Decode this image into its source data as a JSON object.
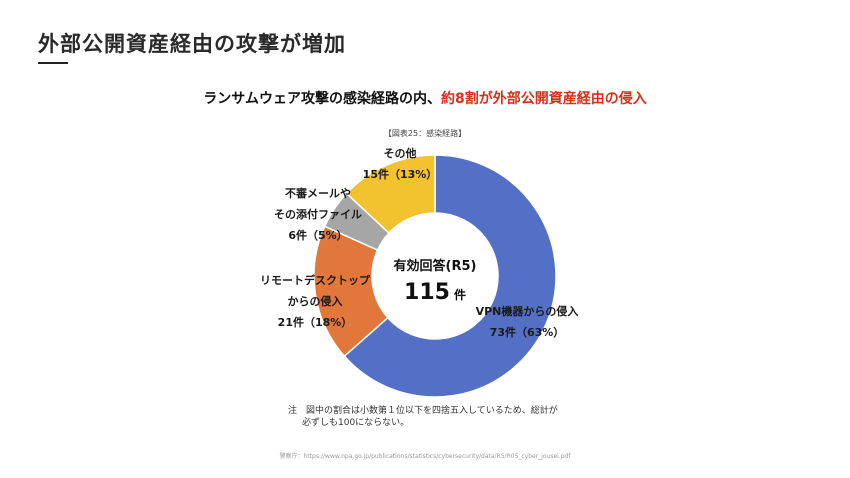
{
  "header": {
    "title": "外部公開資産経由の攻撃が増加"
  },
  "subtitle": {
    "lead": "ランサムウェア攻撃の感染経路の内、",
    "highlight": "約8割が外部公開資産経由の侵入"
  },
  "figure_title": "【図表25：感染経路】",
  "center": {
    "label": "有効回答(R5)",
    "total": "115",
    "unit": "件"
  },
  "labels": {
    "vpn": {
      "line1": "VPN機器からの侵入",
      "line2": "73件（63%）"
    },
    "rdp": {
      "line1": "リモートデスクトップ",
      "line2": "からの侵入",
      "line3": "21件（18%）"
    },
    "mail": {
      "line1": "不審メールや",
      "line2": "その添付ファイル",
      "line3": "6件（5%）"
    },
    "other": {
      "line1": "その他",
      "line2": "15件（13%）"
    }
  },
  "note": {
    "line1": "注　図中の割合は小数第１位以下を四捨五入しているため、総計が",
    "line2": "必ずしも100にならない。"
  },
  "source": "警察庁：https://www.npa.go.jp/publications/statistics/cybersecurity/data/R5/R05_cyber_jousei.pdf",
  "chart_data": {
    "type": "pie",
    "donut": true,
    "title": "【図表25：感染経路】",
    "total": 115,
    "slices": [
      {
        "name": "VPN機器からの侵入",
        "value": 73,
        "percent": 63,
        "color": "#5470c6"
      },
      {
        "name": "リモートデスクトップからの侵入",
        "value": 21,
        "percent": 18,
        "color": "#e2773c"
      },
      {
        "name": "不審メールやその添付ファイル",
        "value": 6,
        "percent": 5,
        "color": "#a6a6a6"
      },
      {
        "name": "その他",
        "value": 15,
        "percent": 13,
        "color": "#f3c22f"
      }
    ]
  }
}
